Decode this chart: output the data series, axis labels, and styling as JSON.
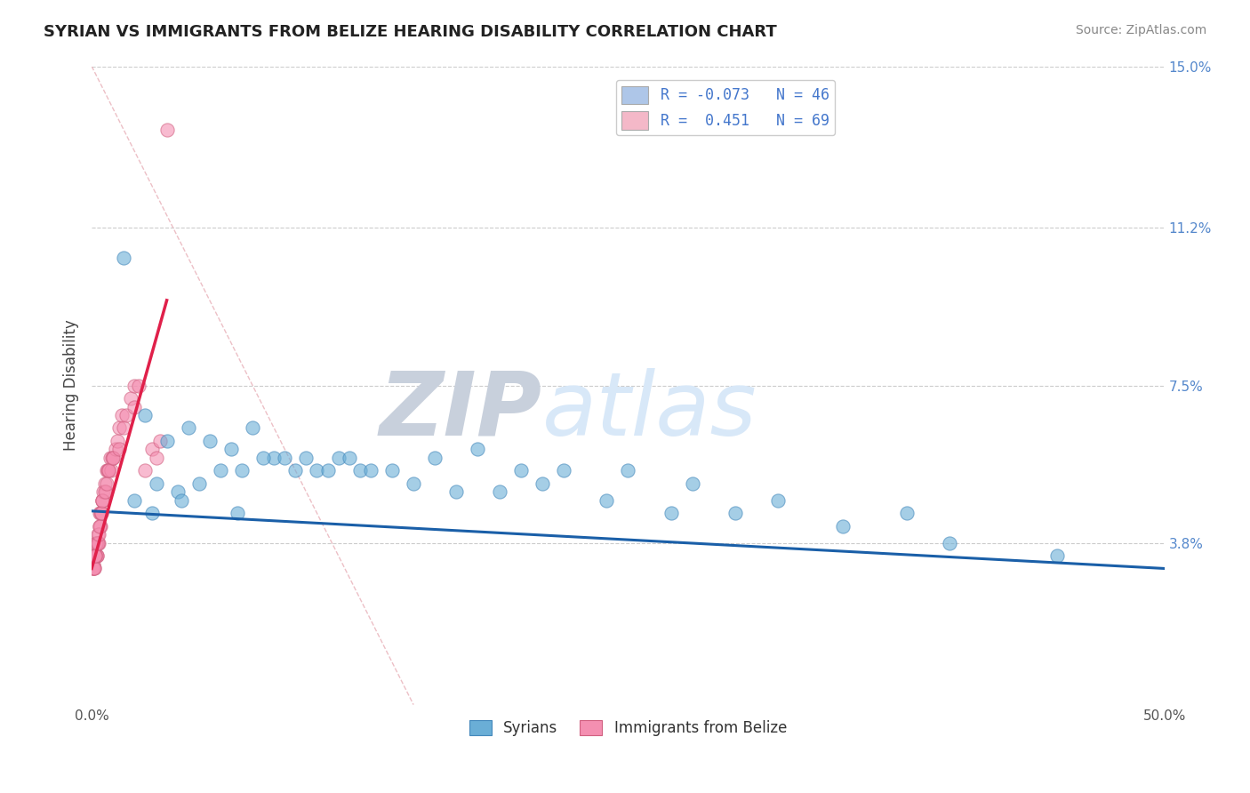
{
  "title": "SYRIAN VS IMMIGRANTS FROM BELIZE HEARING DISABILITY CORRELATION CHART",
  "source": "Source: ZipAtlas.com",
  "ylabel": "Hearing Disability",
  "xlim": [
    0.0,
    50.0
  ],
  "ylim": [
    0.0,
    15.0
  ],
  "xtick_labels": [
    "0.0%",
    "50.0%"
  ],
  "ytick_positions": [
    3.8,
    7.5,
    11.2,
    15.0
  ],
  "ytick_labels": [
    "3.8%",
    "7.5%",
    "11.2%",
    "15.0%"
  ],
  "grid_color": "#cccccc",
  "background_color": "#ffffff",
  "watermark": "ZIPatlas",
  "watermark_color": "#d0e0f5",
  "legend_blue_label": "R = -0.073   N = 46",
  "legend_pink_label": "R =  0.451   N = 69",
  "legend_blue_fill": "#aec6e8",
  "legend_pink_fill": "#f4b8c8",
  "legend_text_color": "#4477cc",
  "syrians_color": "#6aaed6",
  "syrians_edge": "#4488bb",
  "syrians_trend_color": "#1a5fa8",
  "syrians_trend_start_y": 4.55,
  "syrians_trend_end_y": 3.2,
  "belize_color": "#f48fb1",
  "belize_edge": "#d06080",
  "belize_trend_color": "#e0204a",
  "belize_trend_start_x": 0.0,
  "belize_trend_start_y": 3.2,
  "belize_trend_end_x": 3.5,
  "belize_trend_end_y": 9.5,
  "diag_color": "#e8b0b8",
  "syrians_x": [
    1.5,
    2.5,
    3.5,
    4.5,
    5.5,
    6.5,
    7.5,
    8.5,
    9.5,
    10.5,
    11.5,
    12.5,
    14.0,
    16.0,
    18.0,
    20.0,
    22.0,
    25.0,
    28.0,
    32.0,
    38.0,
    45.0,
    3.0,
    4.0,
    5.0,
    6.0,
    7.0,
    8.0,
    9.0,
    10.0,
    11.0,
    12.0,
    13.0,
    15.0,
    17.0,
    19.0,
    21.0,
    24.0,
    27.0,
    30.0,
    35.0,
    40.0,
    2.0,
    2.8,
    4.2,
    6.8
  ],
  "syrians_y": [
    10.5,
    6.8,
    6.2,
    6.5,
    6.2,
    6.0,
    6.5,
    5.8,
    5.5,
    5.5,
    5.8,
    5.5,
    5.5,
    5.8,
    6.0,
    5.5,
    5.5,
    5.5,
    5.2,
    4.8,
    4.5,
    3.5,
    5.2,
    5.0,
    5.2,
    5.5,
    5.5,
    5.8,
    5.8,
    5.8,
    5.5,
    5.8,
    5.5,
    5.2,
    5.0,
    5.0,
    5.2,
    4.8,
    4.5,
    4.5,
    4.2,
    3.8,
    4.8,
    4.5,
    4.8,
    4.5
  ],
  "belize_x": [
    0.05,
    0.08,
    0.1,
    0.12,
    0.13,
    0.14,
    0.15,
    0.16,
    0.17,
    0.18,
    0.19,
    0.2,
    0.21,
    0.22,
    0.23,
    0.24,
    0.25,
    0.26,
    0.28,
    0.3,
    0.32,
    0.35,
    0.38,
    0.4,
    0.42,
    0.45,
    0.48,
    0.5,
    0.55,
    0.6,
    0.65,
    0.7,
    0.75,
    0.8,
    0.85,
    0.9,
    0.95,
    1.0,
    1.1,
    1.2,
    1.3,
    1.4,
    1.5,
    1.6,
    1.8,
    2.0,
    2.2,
    2.5,
    2.8,
    3.0,
    3.2,
    3.5,
    0.06,
    0.09,
    0.11,
    0.15,
    0.18,
    0.22,
    0.27,
    0.33,
    0.37,
    0.44,
    0.5,
    0.6,
    0.7,
    0.8,
    1.0,
    1.3,
    2.0
  ],
  "belize_y": [
    3.2,
    3.3,
    3.5,
    3.5,
    3.2,
    3.5,
    3.5,
    3.5,
    3.5,
    3.5,
    3.5,
    3.8,
    3.5,
    3.5,
    3.8,
    3.5,
    3.8,
    3.5,
    3.8,
    4.0,
    3.8,
    4.2,
    4.5,
    4.5,
    4.2,
    4.5,
    4.8,
    4.8,
    5.0,
    5.2,
    5.0,
    5.5,
    5.5,
    5.5,
    5.8,
    5.5,
    5.8,
    5.8,
    6.0,
    6.2,
    6.5,
    6.8,
    6.5,
    6.8,
    7.2,
    7.5,
    7.5,
    5.5,
    6.0,
    5.8,
    6.2,
    13.5,
    3.2,
    3.2,
    3.2,
    3.5,
    3.5,
    3.8,
    3.8,
    4.0,
    4.2,
    4.5,
    4.8,
    5.0,
    5.2,
    5.5,
    5.8,
    6.0,
    7.0
  ]
}
